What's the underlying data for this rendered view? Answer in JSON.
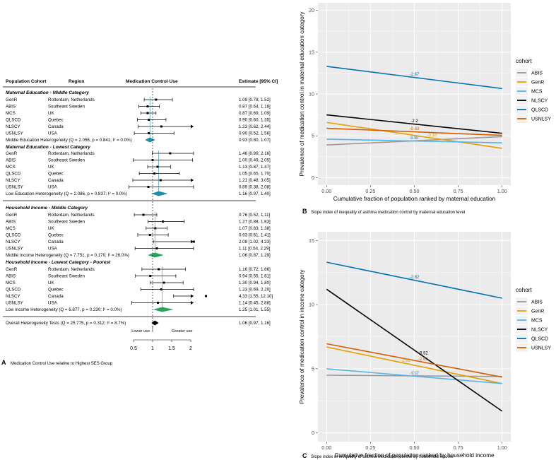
{
  "forest": {
    "headers": {
      "cohort": "Population Cohort",
      "region": "Region",
      "use": "Medication Control Use",
      "estimate": "Estimate [95% CI]"
    },
    "sections": [
      {
        "title": "Maternal Education - Middle Category",
        "rows": [
          {
            "cohort": "GenR",
            "region": "Rotterdam, Netherlands",
            "est": 1.09,
            "lo": 0.78,
            "hi": 1.52,
            "text": "1.09 [0.78, 1.52]"
          },
          {
            "cohort": "ABIS",
            "region": "Southeast Sweden",
            "est": 0.87,
            "lo": 0.64,
            "hi": 1.18,
            "text": "0.87 [0.64, 1.18]"
          },
          {
            "cohort": "MCS",
            "region": "UK",
            "est": 0.87,
            "lo": 0.69,
            "hi": 1.09,
            "text": "0.87 [0.69, 1.09]"
          },
          {
            "cohort": "QLSCD",
            "region": "Quebec",
            "est": 0.9,
            "lo": 0.6,
            "hi": 1.35,
            "text": "0.90 [0.60, 1.35]"
          },
          {
            "cohort": "NLSCY",
            "region": "Canada",
            "est": 1.23,
            "lo": 0.62,
            "hi": 2.44,
            "text": "1.23 [0.62, 2.44]"
          },
          {
            "cohort": "USNLSY",
            "region": "USA",
            "est": 0.9,
            "lo": 0.52,
            "hi": 1.56,
            "text": "0.90 [0.52, 1.56]"
          }
        ],
        "summary": {
          "label": "Middle Education Heterogeneity (Q = 2.056, p = 0.841; I² = 0.0%)",
          "est": 0.93,
          "lo": 0.8,
          "hi": 1.07,
          "text": "0.93 [0.80, 1.07]",
          "color": "#1f8fa5"
        }
      },
      {
        "title": "Maternal Education - Lowest Category",
        "rows": [
          {
            "cohort": "GenR",
            "region": "Rotterdam, Netherlands",
            "est": 1.46,
            "lo": 0.99,
            "hi": 2.16,
            "text": "1.46 [0.99, 2.16]"
          },
          {
            "cohort": "ABIS",
            "region": "Southeast Sweden",
            "est": 1.0,
            "lo": 0.49,
            "hi": 2.05,
            "text": "1.00 [0.49, 2.05]"
          },
          {
            "cohort": "MCS",
            "region": "UK",
            "est": 1.13,
            "lo": 0.87,
            "hi": 1.47,
            "text": "1.13 [0.87, 1.47]"
          },
          {
            "cohort": "QLSCD",
            "region": "Quebec",
            "est": 1.05,
            "lo": 0.65,
            "hi": 1.7,
            "text": "1.05 [0.65, 1.70]"
          },
          {
            "cohort": "NLSCY",
            "region": "Canada",
            "est": 1.21,
            "lo": 0.48,
            "hi": 3.05,
            "text": "1.21 [0.48, 3.05]"
          },
          {
            "cohort": "USNLSY",
            "region": "USA",
            "est": 0.89,
            "lo": 0.38,
            "hi": 2.08,
            "text": "0.89 [0.38, 2.08]"
          }
        ],
        "summary": {
          "label": "Low Education Heterogeneity (Q = 2.086, p = 0.837; I² = 0.0%)",
          "est": 1.16,
          "lo": 0.97,
          "hi": 1.4,
          "text": "1.16 [0.97, 1.40]",
          "color": "#1f8fa5"
        }
      },
      {
        "title": "Household Income - Middle Category",
        "rows": [
          {
            "cohort": "GenR",
            "region": "Rotterdam, Netherlands",
            "est": 0.76,
            "lo": 0.52,
            "hi": 1.11,
            "text": "0.76 [0.52, 1.11]"
          },
          {
            "cohort": "ABIS",
            "region": "Southeast Sweden",
            "est": 1.27,
            "lo": 0.88,
            "hi": 1.83,
            "text": "1.27 [0.88, 1.83]"
          },
          {
            "cohort": "MCS",
            "region": "UK",
            "est": 1.07,
            "lo": 0.83,
            "hi": 1.38,
            "text": "1.07 [0.83, 1.38]"
          },
          {
            "cohort": "QLSCD",
            "region": "Quebec",
            "est": 0.93,
            "lo": 0.61,
            "hi": 1.41,
            "text": "0.93 [0.61, 1.41]"
          },
          {
            "cohort": "NLSCY",
            "region": "Canada",
            "est": 2.08,
            "lo": 1.02,
            "hi": 4.23,
            "text": "2.08 [1.02, 4.23]"
          },
          {
            "cohort": "USNLSY",
            "region": "USA",
            "est": 1.11,
            "lo": 0.54,
            "hi": 2.29,
            "text": "1.11 [0.54, 2.29]"
          }
        ],
        "summary": {
          "label": "Middle Income Heterogeneity (Q = 7.751, p = 0.170; I² = 26.0%)",
          "est": 1.06,
          "lo": 0.87,
          "hi": 1.29,
          "text": "1.06 [0.87, 1.29]",
          "color": "#2ca25f"
        }
      },
      {
        "title": "Household Income - Lowest Category - Poorest",
        "rows": [
          {
            "cohort": "GenR",
            "region": "Rotterdam, Netherlands",
            "est": 1.16,
            "lo": 0.72,
            "hi": 1.86,
            "text": "1.16 [0.72, 1.86]"
          },
          {
            "cohort": "ABIS",
            "region": "Southeast Sweden",
            "est": 0.94,
            "lo": 0.55,
            "hi": 1.61,
            "text": "0.94 [0.55, 1.61]"
          },
          {
            "cohort": "MCS",
            "region": "UK",
            "est": 1.3,
            "lo": 0.94,
            "hi": 1.8,
            "text": "1.30 [0.94, 1.80]"
          },
          {
            "cohort": "QLSCD",
            "region": "Quebec",
            "est": 1.23,
            "lo": 0.69,
            "hi": 2.2,
            "text": "1.23 [0.69, 2.20]"
          },
          {
            "cohort": "NLSCY",
            "region": "Canada",
            "est": 4.33,
            "lo": 1.55,
            "hi": 12.1,
            "text": "4.33 [1.55, 12.10]"
          },
          {
            "cohort": "USNLSY",
            "region": "USA",
            "est": 1.14,
            "lo": 0.45,
            "hi": 2.88,
            "text": "1.14 [0.45, 2.88]"
          }
        ],
        "summary": {
          "label": "Low Income Heterogeneity (Q = 6.877, p = 0.230; I² = 0.0%)",
          "est": 1.25,
          "lo": 1.01,
          "hi": 1.55,
          "text": "1.25 [1.01, 1.55]",
          "color": "#2ca25f"
        }
      }
    ],
    "overall": {
      "label": "Overall Heterogeneity Tests (Q = 25.775, p = 0.312; I² = 8.7%)",
      "est": 1.06,
      "lo": 0.97,
      "hi": 1.16,
      "text": "1.06 [0.97, 1.16]",
      "color": "#000000"
    },
    "lower_use": "Lower use",
    "greater_use": "Greater use",
    "ticks": [
      0.5,
      1,
      1.5,
      2
    ],
    "tick_labels": [
      "0.5",
      "1",
      "1.5",
      "2"
    ],
    "axis_range": [
      0.5,
      2.0
    ],
    "panel_letter": "A",
    "caption": "Medication Control Use relative to Highest SES Group"
  },
  "chart_data": [
    {
      "type": "line",
      "panel_letter": "B",
      "caption": "Slope index of inequality of asthma medication control by maternal education level",
      "xlabel": "Cumulative fraction of population ranked by maternal education",
      "ylabel": "Prevalence of medication control in maternal education category",
      "xlim": [
        0,
        1
      ],
      "ylim": [
        0,
        20
      ],
      "xticks": [
        0,
        0.25,
        0.5,
        0.75,
        1
      ],
      "xtick_labels": [
        "0.00",
        "0.25",
        "0.50",
        "0.75",
        "1.00"
      ],
      "yticks": [
        0,
        5,
        10,
        15,
        20
      ],
      "ytick_labels": [
        "0",
        "5",
        "10",
        "15",
        "20"
      ],
      "legend_title": "cohort",
      "legend_position": "right",
      "series": [
        {
          "name": "ABIS",
          "color": "#999999",
          "y0": 3.9,
          "y1": 4.9,
          "label": "0.98",
          "label_x": 0.5
        },
        {
          "name": "GenR",
          "color": "#e69f00",
          "y0": 6.6,
          "y1": 3.5,
          "label": "-3.18",
          "label_x": 0.6
        },
        {
          "name": "MCS",
          "color": "#56b4e9",
          "y0": 4.6,
          "y1": 4.15,
          "label": "-0.47",
          "label_x": 0.5
        },
        {
          "name": "NLSCY",
          "color": "#000000",
          "y0": 7.5,
          "y1": 5.3,
          "label": "-2.2",
          "label_x": 0.5
        },
        {
          "name": "QLSCD",
          "color": "#0072b2",
          "y0": 13.3,
          "y1": 10.65,
          "label": "-2.67",
          "label_x": 0.5
        },
        {
          "name": "USNLSY",
          "color": "#d55e00",
          "y0": 5.9,
          "y1": 5.05,
          "label": "-0.83",
          "label_x": 0.5
        }
      ]
    },
    {
      "type": "line",
      "panel_letter": "C",
      "caption": "Slope index of inequality of asthma medication control by household income",
      "xlabel": "Cumulative fraction of population ranked by household income",
      "ylabel": "Prevalence of medication control in income category",
      "xlim": [
        0,
        1
      ],
      "ylim": [
        0,
        15
      ],
      "xticks": [
        0,
        0.25,
        0.5,
        0.75,
        1
      ],
      "xtick_labels": [
        "0.00",
        "0.25",
        "0.50",
        "0.75",
        "1.00"
      ],
      "yticks": [
        0,
        5,
        10,
        15
      ],
      "ytick_labels": [
        "0",
        "5",
        "10",
        "15"
      ],
      "legend_title": "cohort",
      "legend_position": "right",
      "series": [
        {
          "name": "ABIS",
          "color": "#999999",
          "y0": 4.5,
          "y1": 4.4,
          "label": "-0.1",
          "label_x": 0.5
        },
        {
          "name": "GenR",
          "color": "#e69f00",
          "y0": 6.7,
          "y1": 3.85,
          "label": "-2.92",
          "label_x": 0.45
        },
        {
          "name": "MCS",
          "color": "#56b4e9",
          "y0": 5.0,
          "y1": 3.85,
          "label": "-1.17",
          "label_x": 0.5
        },
        {
          "name": "NLSCY",
          "color": "#000000",
          "y0": 11.2,
          "y1": 1.7,
          "label": "-9.52",
          "label_x": 0.55
        },
        {
          "name": "QLSCD",
          "color": "#0072b2",
          "y0": 13.3,
          "y1": 10.5,
          "label": "-2.82",
          "label_x": 0.5
        },
        {
          "name": "USNLSY",
          "color": "#d55e00",
          "y0": 6.95,
          "y1": 4.35,
          "label": "-2.62",
          "label_x": 0.55
        }
      ]
    }
  ]
}
